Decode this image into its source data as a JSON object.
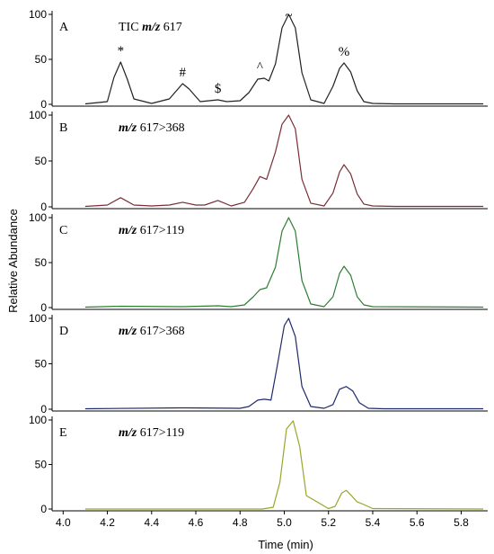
{
  "chart_data": [
    {
      "type": "line",
      "panel": "A",
      "label": {
        "title": "TIC",
        "mz": "m/z",
        "value": "617"
      },
      "color": "#222222",
      "x": [
        4.1,
        4.2,
        4.23,
        4.26,
        4.29,
        4.32,
        4.4,
        4.48,
        4.54,
        4.57,
        4.62,
        4.66,
        4.7,
        4.74,
        4.8,
        4.84,
        4.88,
        4.91,
        4.93,
        4.96,
        4.99,
        5.02,
        5.05,
        5.08,
        5.12,
        5.18,
        5.22,
        5.25,
        5.27,
        5.3,
        5.33,
        5.36,
        5.4,
        5.5,
        5.9
      ],
      "y": [
        0.5,
        3,
        30,
        47,
        28,
        6,
        1,
        6,
        23,
        17,
        3,
        4,
        5,
        3,
        4,
        13,
        28,
        29,
        26,
        45,
        85,
        100,
        85,
        35,
        5,
        1,
        20,
        40,
        46,
        36,
        15,
        3,
        1,
        0.5,
        0.5
      ],
      "markers": [
        {
          "symbol": "*",
          "x": 4.26
        },
        {
          "symbol": "#",
          "x": 4.54
        },
        {
          "symbol": "$",
          "x": 4.7
        },
        {
          "symbol": "^",
          "x": 4.89
        },
        {
          "symbol": "~",
          "x": 5.02
        },
        {
          "symbol": "%",
          "x": 5.27
        }
      ]
    },
    {
      "type": "line",
      "panel": "B",
      "label": {
        "title": "",
        "mz": "m/z",
        "value": "617>368"
      },
      "color": "#7a2e36",
      "x": [
        4.1,
        4.2,
        4.26,
        4.32,
        4.4,
        4.48,
        4.54,
        4.6,
        4.64,
        4.7,
        4.76,
        4.82,
        4.86,
        4.89,
        4.92,
        4.96,
        4.99,
        5.02,
        5.05,
        5.08,
        5.12,
        5.18,
        5.22,
        5.25,
        5.27,
        5.3,
        5.33,
        5.36,
        5.4,
        5.5,
        5.9
      ],
      "y": [
        0.5,
        2,
        10,
        2,
        1,
        2,
        5,
        2,
        2,
        7,
        1,
        5,
        20,
        33,
        30,
        60,
        90,
        100,
        85,
        30,
        4,
        1,
        15,
        38,
        46,
        36,
        14,
        3,
        1,
        0.5,
        0.5
      ]
    },
    {
      "type": "line",
      "panel": "C",
      "label": {
        "title": "",
        "mz": "m/z",
        "value": "617>119"
      },
      "color": "#2e7d32",
      "x": [
        4.1,
        4.26,
        4.54,
        4.7,
        4.76,
        4.82,
        4.86,
        4.89,
        4.92,
        4.96,
        4.99,
        5.02,
        5.05,
        5.08,
        5.12,
        5.18,
        5.22,
        5.25,
        5.27,
        5.3,
        5.33,
        5.36,
        5.4,
        5.9
      ],
      "y": [
        0.5,
        1.5,
        1,
        2,
        1,
        3,
        12,
        20,
        22,
        45,
        85,
        100,
        85,
        30,
        4,
        1,
        12,
        38,
        46,
        36,
        12,
        3,
        1,
        0.5
      ]
    },
    {
      "type": "line",
      "panel": "D",
      "label": {
        "title": "",
        "mz": "m/z",
        "value": "617>368"
      },
      "color": "#1f2a6b",
      "x": [
        4.1,
        4.54,
        4.8,
        4.84,
        4.88,
        4.91,
        4.94,
        4.97,
        5.0,
        5.02,
        5.05,
        5.08,
        5.12,
        5.18,
        5.22,
        5.25,
        5.28,
        5.31,
        5.34,
        5.38,
        5.45,
        5.9
      ],
      "y": [
        0.5,
        1.5,
        1,
        3,
        10,
        11,
        10,
        50,
        92,
        100,
        80,
        25,
        3,
        1,
        5,
        22,
        25,
        20,
        7,
        1,
        0.5,
        0.5
      ]
    },
    {
      "type": "line",
      "panel": "E",
      "label": {
        "title": "",
        "mz": "m/z",
        "value": "617>119"
      },
      "color": "#9aa52a",
      "x": [
        4.1,
        4.9,
        4.95,
        4.98,
        5.01,
        5.04,
        5.07,
        5.1,
        5.2,
        5.23,
        5.26,
        5.28,
        5.3,
        5.33,
        5.36,
        5.4,
        5.9
      ],
      "y": [
        0,
        0,
        2,
        30,
        90,
        99,
        70,
        15,
        0.5,
        3,
        18,
        21,
        16,
        8,
        5,
        0.5,
        0
      ]
    }
  ],
  "axes": {
    "xlabel": "Time (min)",
    "ylabel": "Relative Abundance",
    "xlim": [
      3.95,
      5.92
    ],
    "ylim": [
      0,
      100
    ],
    "xticks": [
      "4.0",
      "4.2",
      "4.4",
      "4.6",
      "4.8",
      "5.0",
      "5.2",
      "5.4",
      "5.6",
      "5.8"
    ],
    "yticks": [
      "0",
      "50",
      "100"
    ]
  }
}
